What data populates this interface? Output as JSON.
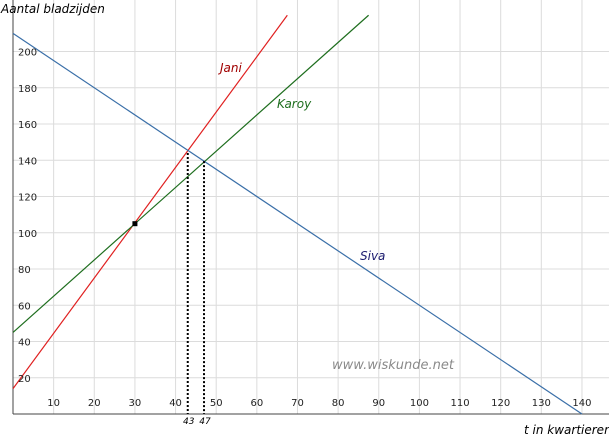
{
  "chart_data": {
    "type": "line",
    "title": "",
    "xlabel": "t in kwartieren",
    "ylabel": "Aantal bladzijden",
    "xlim": [
      0,
      145
    ],
    "ylim": [
      0,
      215
    ],
    "x_ticks": [
      10,
      20,
      30,
      40,
      50,
      60,
      70,
      80,
      90,
      100,
      110,
      120,
      130,
      140
    ],
    "y_ticks": [
      20,
      40,
      60,
      80,
      100,
      120,
      140,
      160,
      180,
      200
    ],
    "grid": true,
    "watermark": "www.wiskunde.net",
    "series": [
      {
        "name": "Jani",
        "color": "#e02020",
        "label_color": "#a00000",
        "x": [
          0,
          67.5
        ],
        "y": [
          14,
          220
        ]
      },
      {
        "name": "Karoy",
        "color": "#1e6e1e",
        "label_color": "#1e6e1e",
        "x": [
          0,
          87.5
        ],
        "y": [
          45,
          220
        ]
      },
      {
        "name": "Siva",
        "color": "#3a6fa8",
        "label_color": "#1a1a6e",
        "x": [
          0,
          140
        ],
        "y": [
          210,
          0
        ]
      }
    ],
    "points": [
      {
        "x": 30,
        "y": 105
      },
      {
        "x": 43,
        "y": 144
      },
      {
        "x": 47,
        "y": 139.5
      }
    ],
    "reference_lines": [
      {
        "x": 43,
        "y": 144,
        "label": "43"
      },
      {
        "x": 47,
        "y": 139.5,
        "label": "47"
      }
    ]
  }
}
